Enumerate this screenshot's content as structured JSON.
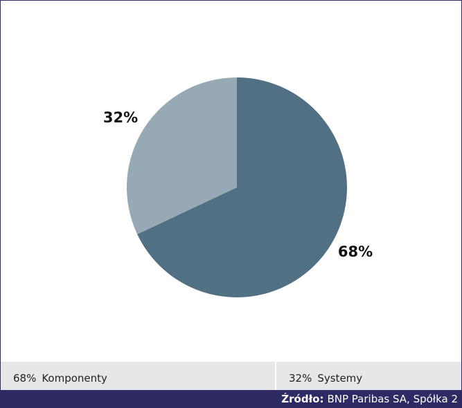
{
  "chart_data": {
    "type": "pie",
    "slices": [
      {
        "name": "Komponenty",
        "value": 68,
        "label": "68%",
        "color": "#517083"
      },
      {
        "name": "Systemy",
        "value": 32,
        "label": "32%",
        "color": "#98a9b6"
      }
    ]
  },
  "legend": {
    "items": [
      {
        "pct": "68%",
        "label": "Komponenty"
      },
      {
        "pct": "32%",
        "label": "Systemy"
      }
    ]
  },
  "source": {
    "label": "Źródło:",
    "text": "BNP Paribas SA, Spółka 2"
  }
}
